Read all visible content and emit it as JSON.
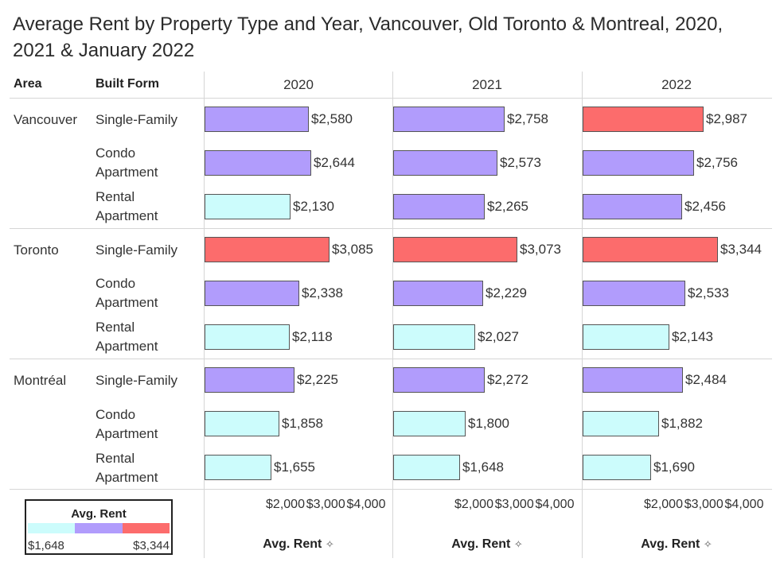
{
  "title": "Average Rent by Property Type and Year, Vancouver, Old Toronto & Montreal, 2020, 2021 & January 2022",
  "headers": {
    "area": "Area",
    "built_form": "Built Form"
  },
  "legend": {
    "title": "Avg. Rent",
    "min_label": "$1,648",
    "max_label": "$3,344",
    "colors": [
      "#ccfcfc",
      "#b19cfc",
      "#fc6c6c"
    ]
  },
  "axis": {
    "label": "Avg. Rent",
    "pin_icon": "pin-icon",
    "ticks": [
      2000,
      3000,
      4000
    ],
    "tick_labels": [
      "$2,000",
      "$3,000",
      "$4,000"
    ]
  },
  "chart_data": {
    "type": "bar",
    "title": "Average Rent by Property Type and Year, Vancouver, Old Toronto & Montreal, 2020, 2021 & January 2022",
    "xlabel": "Avg. Rent",
    "xlim": [
      0,
      4000
    ],
    "years": [
      "2020",
      "2021",
      "2022"
    ],
    "colors": {
      "low": "#ccfcfc",
      "mid": "#b19cfc",
      "high": "#fc6c6c",
      "border": "#555555"
    },
    "groups": [
      {
        "area": "Vancouver",
        "rows": [
          {
            "built_form": "Single-Family",
            "values": [
              2580,
              2758,
              2987
            ],
            "labels": [
              "$2,580",
              "$2,758",
              "$2,987"
            ],
            "color_class": [
              "mid",
              "mid",
              "high"
            ]
          },
          {
            "built_form": "Condo Apartment",
            "values": [
              2644,
              2573,
              2756
            ],
            "labels": [
              "$2,644",
              "$2,573",
              "$2,756"
            ],
            "color_class": [
              "mid",
              "mid",
              "mid"
            ]
          },
          {
            "built_form": "Rental Apartment",
            "values": [
              2130,
              2265,
              2456
            ],
            "labels": [
              "$2,130",
              "$2,265",
              "$2,456"
            ],
            "color_class": [
              "low",
              "mid",
              "mid"
            ]
          }
        ]
      },
      {
        "area": "Toronto",
        "rows": [
          {
            "built_form": "Single-Family",
            "values": [
              3085,
              3073,
              3344
            ],
            "labels": [
              "$3,085",
              "$3,073",
              "$3,344"
            ],
            "color_class": [
              "high",
              "high",
              "high"
            ]
          },
          {
            "built_form": "Condo Apartment",
            "values": [
              2338,
              2229,
              2533
            ],
            "labels": [
              "$2,338",
              "$2,229",
              "$2,533"
            ],
            "color_class": [
              "mid",
              "mid",
              "mid"
            ]
          },
          {
            "built_form": "Rental Apartment",
            "values": [
              2118,
              2027,
              2143
            ],
            "labels": [
              "$2,118",
              "$2,027",
              "$2,143"
            ],
            "color_class": [
              "low",
              "low",
              "low"
            ]
          }
        ]
      },
      {
        "area": "Montréal",
        "rows": [
          {
            "built_form": "Single-Family",
            "values": [
              2225,
              2272,
              2484
            ],
            "labels": [
              "$2,225",
              "$2,272",
              "$2,484"
            ],
            "color_class": [
              "mid",
              "mid",
              "mid"
            ]
          },
          {
            "built_form": "Condo Apartment",
            "values": [
              1858,
              1800,
              1882
            ],
            "labels": [
              "$1,858",
              "$1,800",
              "$1,882"
            ],
            "color_class": [
              "low",
              "low",
              "low"
            ]
          },
          {
            "built_form": "Rental Apartment",
            "values": [
              1655,
              1648,
              1690
            ],
            "labels": [
              "$1,655",
              "$1,648",
              "$1,690"
            ],
            "color_class": [
              "low",
              "low",
              "low"
            ]
          }
        ]
      }
    ]
  }
}
